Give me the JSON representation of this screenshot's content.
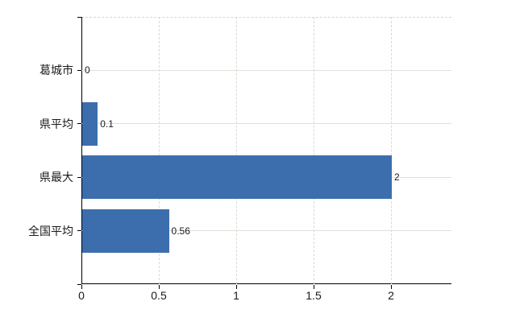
{
  "chart_data": {
    "type": "bar",
    "orientation": "horizontal",
    "categories": [
      "葛城市",
      "県平均",
      "県最大",
      "全国平均"
    ],
    "values": [
      0,
      0.1,
      2,
      0.56
    ],
    "value_labels": [
      "0",
      "0.1",
      "2",
      "0.56"
    ],
    "x_ticks": [
      0,
      0.5,
      1,
      1.5,
      2
    ],
    "x_tick_labels": [
      "0",
      "0.5",
      "1",
      "1.5",
      "2"
    ],
    "xlim": [
      0,
      2.39
    ],
    "grid": true,
    "legend": "none",
    "colors": {
      "bar": "#3c6eae",
      "axis": "#000000",
      "gridline_horizontal": "#dbe2d8",
      "gridline_vertical": "#d4dcd4",
      "top_border": "#d8d4d1",
      "background": "#ffffff",
      "text": "#1a1a1a"
    }
  }
}
